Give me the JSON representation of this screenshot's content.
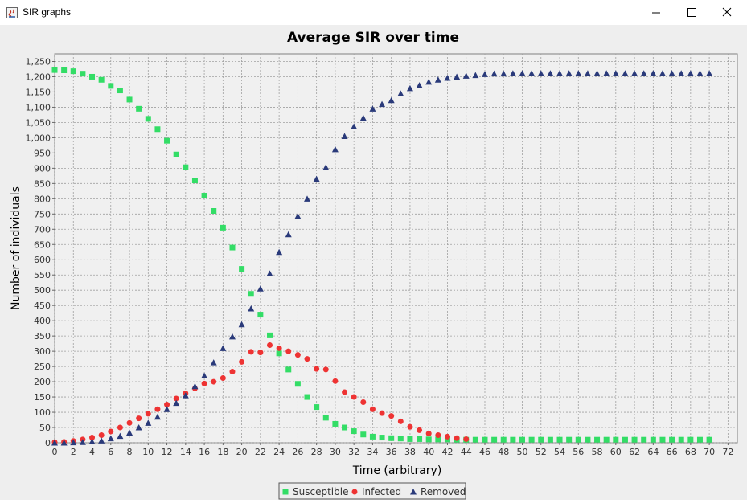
{
  "window": {
    "title": "SIR graphs",
    "icons": {
      "app": "java-app-icon",
      "minimize": "minimize-icon",
      "maximize": "maximize-icon",
      "close": "close-icon"
    }
  },
  "chart_data": {
    "type": "scatter",
    "title": "Average SIR over time",
    "xlabel": "Time (arbitrary)",
    "ylabel": "Number of individuals",
    "xlim": [
      0,
      73
    ],
    "ylim": [
      0,
      1275
    ],
    "xticks": [
      0,
      2,
      4,
      6,
      8,
      10,
      12,
      14,
      16,
      18,
      20,
      22,
      24,
      26,
      28,
      30,
      32,
      34,
      36,
      38,
      40,
      42,
      44,
      46,
      48,
      50,
      52,
      54,
      56,
      58,
      60,
      62,
      64,
      66,
      68,
      70,
      72
    ],
    "yticks": [
      0,
      50,
      100,
      150,
      200,
      250,
      300,
      350,
      400,
      450,
      500,
      550,
      600,
      650,
      700,
      750,
      800,
      850,
      900,
      950,
      1000,
      1050,
      1100,
      1150,
      1200,
      1250
    ],
    "ytick_labels": [
      "0",
      "50",
      "100",
      "150",
      "200",
      "250",
      "300",
      "350",
      "400",
      "450",
      "500",
      "550",
      "600",
      "650",
      "700",
      "750",
      "800",
      "850",
      "900",
      "950",
      "1,000",
      "1,050",
      "1,100",
      "1,150",
      "1,200",
      "1,250"
    ],
    "grid": true,
    "legend": "bottom",
    "colors": {
      "background": "#eeeeee",
      "plot": "#f0f0f0",
      "grid": "#a0a0a0"
    },
    "series": [
      {
        "name": "Susceptible",
        "marker": "square",
        "color": "#33dd66",
        "x": [
          0,
          1,
          2,
          3,
          4,
          5,
          6,
          7,
          8,
          9,
          10,
          11,
          12,
          13,
          14,
          15,
          16,
          17,
          18,
          19,
          20,
          21,
          22,
          23,
          24,
          25,
          26,
          27,
          28,
          29,
          30,
          31,
          32,
          33,
          34,
          35,
          36,
          37,
          38,
          39,
          40,
          41,
          42,
          43,
          44,
          45,
          46,
          47,
          48,
          49,
          50,
          51,
          52,
          53,
          54,
          55,
          56,
          57,
          58,
          59,
          60,
          61,
          62,
          63,
          64,
          65,
          66,
          67,
          68,
          69,
          70
        ],
        "y": [
          1222,
          1221,
          1218,
          1210,
          1200,
          1190,
          1170,
          1155,
          1125,
          1095,
          1062,
          1028,
          990,
          945,
          903,
          860,
          810,
          760,
          705,
          640,
          570,
          488,
          420,
          352,
          293,
          240,
          193,
          150,
          117,
          82,
          62,
          50,
          38,
          27,
          20,
          17,
          15,
          14,
          12,
          12,
          11,
          11,
          11,
          10,
          10,
          10,
          10,
          10,
          10,
          10,
          10,
          10,
          10,
          10,
          10,
          10,
          10,
          10,
          10,
          10,
          10,
          10,
          10,
          10,
          10,
          10,
          10,
          10,
          10,
          10,
          10
        ]
      },
      {
        "name": "Infected",
        "marker": "circle",
        "color": "#ee3333",
        "x": [
          0,
          1,
          2,
          3,
          4,
          5,
          6,
          7,
          8,
          9,
          10,
          11,
          12,
          13,
          14,
          15,
          16,
          17,
          18,
          19,
          20,
          21,
          22,
          23,
          24,
          25,
          26,
          27,
          28,
          29,
          30,
          31,
          32,
          33,
          34,
          35,
          36,
          37,
          38,
          39,
          40,
          41,
          42,
          43,
          44
        ],
        "y": [
          2,
          3,
          6,
          11,
          17,
          25,
          37,
          50,
          65,
          80,
          95,
          110,
          125,
          145,
          162,
          178,
          194,
          200,
          212,
          233,
          265,
          298,
          296,
          320,
          310,
          300,
          288,
          275,
          242,
          240,
          202,
          166,
          150,
          133,
          110,
          97,
          88,
          70,
          52,
          41,
          30,
          25,
          20,
          15,
          12
        ]
      },
      {
        "name": "Removed",
        "marker": "triangle",
        "color": "#2a3a7a",
        "x": [
          0,
          1,
          2,
          3,
          4,
          5,
          6,
          7,
          8,
          9,
          10,
          11,
          12,
          13,
          14,
          15,
          16,
          17,
          18,
          19,
          20,
          21,
          22,
          23,
          24,
          25,
          26,
          27,
          28,
          29,
          30,
          31,
          32,
          33,
          34,
          35,
          36,
          37,
          38,
          39,
          40,
          41,
          42,
          43,
          44,
          45,
          46,
          47,
          48,
          49,
          50,
          51,
          52,
          53,
          54,
          55,
          56,
          57,
          58,
          59,
          60,
          61,
          62,
          63,
          64,
          65,
          66,
          67,
          68,
          69,
          70
        ],
        "y": [
          0,
          0,
          1,
          2,
          4,
          7,
          14,
          22,
          33,
          50,
          65,
          85,
          110,
          130,
          155,
          185,
          220,
          263,
          310,
          348,
          388,
          440,
          505,
          555,
          625,
          683,
          743,
          800,
          865,
          903,
          962,
          1005,
          1037,
          1065,
          1095,
          1110,
          1123,
          1145,
          1162,
          1172,
          1183,
          1190,
          1196,
          1200,
          1203,
          1205,
          1208,
          1210,
          1210,
          1211,
          1211,
          1211,
          1211,
          1211,
          1211,
          1211,
          1211,
          1211,
          1211,
          1211,
          1211,
          1211,
          1211,
          1211,
          1211,
          1211,
          1211,
          1211,
          1211,
          1211,
          1211
        ]
      }
    ]
  }
}
